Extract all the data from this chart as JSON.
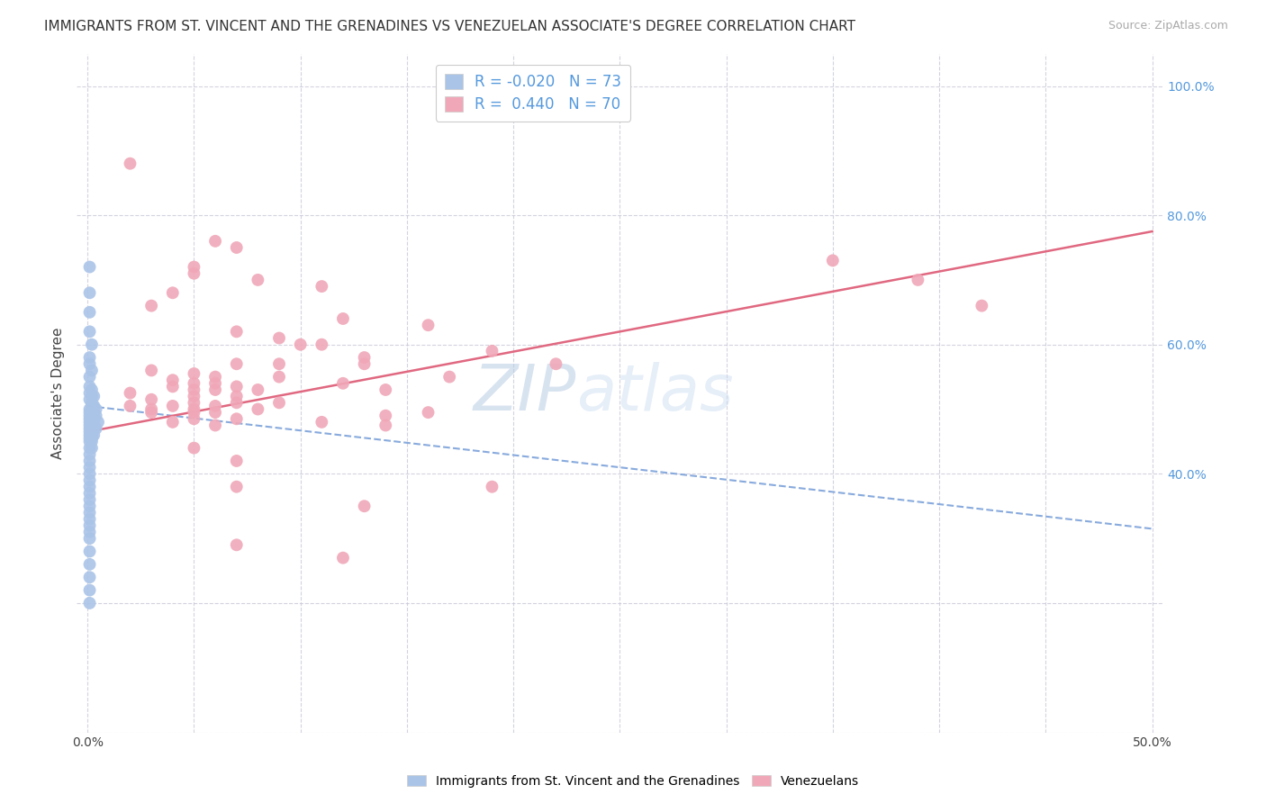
{
  "title": "IMMIGRANTS FROM ST. VINCENT AND THE GRENADINES VS VENEZUELAN ASSOCIATE'S DEGREE CORRELATION CHART",
  "source": "Source: ZipAtlas.com",
  "ylabel": "Associate's Degree",
  "legend_blue_R": "R = -0.020",
  "legend_blue_N": "N = 73",
  "legend_pink_R": "R =  0.440",
  "legend_pink_N": "N = 70",
  "legend_blue_label": "Immigrants from St. Vincent and the Grenadines",
  "legend_pink_label": "Venezuelans",
  "blue_scatter": [
    [
      0.001,
      0.72
    ],
    [
      0.001,
      0.68
    ],
    [
      0.001,
      0.65
    ],
    [
      0.001,
      0.62
    ],
    [
      0.002,
      0.6
    ],
    [
      0.001,
      0.58
    ],
    [
      0.001,
      0.57
    ],
    [
      0.002,
      0.56
    ],
    [
      0.001,
      0.55
    ],
    [
      0.001,
      0.535
    ],
    [
      0.002,
      0.53
    ],
    [
      0.001,
      0.525
    ],
    [
      0.002,
      0.52
    ],
    [
      0.003,
      0.52
    ],
    [
      0.001,
      0.515
    ],
    [
      0.002,
      0.51
    ],
    [
      0.002,
      0.505
    ],
    [
      0.003,
      0.505
    ],
    [
      0.001,
      0.5
    ],
    [
      0.002,
      0.5
    ],
    [
      0.003,
      0.5
    ],
    [
      0.004,
      0.5
    ],
    [
      0.001,
      0.495
    ],
    [
      0.002,
      0.495
    ],
    [
      0.003,
      0.495
    ],
    [
      0.001,
      0.49
    ],
    [
      0.002,
      0.49
    ],
    [
      0.003,
      0.49
    ],
    [
      0.004,
      0.49
    ],
    [
      0.001,
      0.485
    ],
    [
      0.002,
      0.485
    ],
    [
      0.003,
      0.485
    ],
    [
      0.001,
      0.48
    ],
    [
      0.002,
      0.48
    ],
    [
      0.003,
      0.48
    ],
    [
      0.005,
      0.48
    ],
    [
      0.001,
      0.475
    ],
    [
      0.002,
      0.475
    ],
    [
      0.003,
      0.475
    ],
    [
      0.001,
      0.47
    ],
    [
      0.002,
      0.47
    ],
    [
      0.003,
      0.47
    ],
    [
      0.004,
      0.47
    ],
    [
      0.001,
      0.465
    ],
    [
      0.002,
      0.465
    ],
    [
      0.001,
      0.46
    ],
    [
      0.002,
      0.46
    ],
    [
      0.003,
      0.46
    ],
    [
      0.001,
      0.455
    ],
    [
      0.002,
      0.455
    ],
    [
      0.001,
      0.45
    ],
    [
      0.002,
      0.45
    ],
    [
      0.001,
      0.44
    ],
    [
      0.002,
      0.44
    ],
    [
      0.001,
      0.43
    ],
    [
      0.001,
      0.42
    ],
    [
      0.001,
      0.41
    ],
    [
      0.001,
      0.4
    ],
    [
      0.001,
      0.39
    ],
    [
      0.001,
      0.38
    ],
    [
      0.001,
      0.37
    ],
    [
      0.001,
      0.36
    ],
    [
      0.001,
      0.35
    ],
    [
      0.001,
      0.34
    ],
    [
      0.001,
      0.33
    ],
    [
      0.001,
      0.32
    ],
    [
      0.001,
      0.31
    ],
    [
      0.001,
      0.3
    ],
    [
      0.001,
      0.28
    ],
    [
      0.001,
      0.26
    ],
    [
      0.001,
      0.24
    ],
    [
      0.001,
      0.22
    ],
    [
      0.001,
      0.2
    ]
  ],
  "pink_scatter": [
    [
      0.02,
      0.88
    ],
    [
      0.06,
      0.76
    ],
    [
      0.07,
      0.75
    ],
    [
      0.05,
      0.72
    ],
    [
      0.05,
      0.71
    ],
    [
      0.08,
      0.7
    ],
    [
      0.11,
      0.69
    ],
    [
      0.04,
      0.68
    ],
    [
      0.03,
      0.66
    ],
    [
      0.12,
      0.64
    ],
    [
      0.16,
      0.63
    ],
    [
      0.07,
      0.62
    ],
    [
      0.09,
      0.61
    ],
    [
      0.1,
      0.6
    ],
    [
      0.11,
      0.6
    ],
    [
      0.19,
      0.59
    ],
    [
      0.13,
      0.58
    ],
    [
      0.07,
      0.57
    ],
    [
      0.09,
      0.57
    ],
    [
      0.13,
      0.57
    ],
    [
      0.22,
      0.57
    ],
    [
      0.03,
      0.56
    ],
    [
      0.05,
      0.555
    ],
    [
      0.06,
      0.55
    ],
    [
      0.09,
      0.55
    ],
    [
      0.17,
      0.55
    ],
    [
      0.04,
      0.545
    ],
    [
      0.05,
      0.54
    ],
    [
      0.06,
      0.54
    ],
    [
      0.12,
      0.54
    ],
    [
      0.04,
      0.535
    ],
    [
      0.07,
      0.535
    ],
    [
      0.05,
      0.53
    ],
    [
      0.06,
      0.53
    ],
    [
      0.08,
      0.53
    ],
    [
      0.14,
      0.53
    ],
    [
      0.02,
      0.525
    ],
    [
      0.05,
      0.52
    ],
    [
      0.07,
      0.52
    ],
    [
      0.03,
      0.515
    ],
    [
      0.05,
      0.51
    ],
    [
      0.07,
      0.51
    ],
    [
      0.09,
      0.51
    ],
    [
      0.02,
      0.505
    ],
    [
      0.04,
      0.505
    ],
    [
      0.06,
      0.505
    ],
    [
      0.03,
      0.5
    ],
    [
      0.05,
      0.5
    ],
    [
      0.08,
      0.5
    ],
    [
      0.03,
      0.495
    ],
    [
      0.05,
      0.495
    ],
    [
      0.06,
      0.495
    ],
    [
      0.16,
      0.495
    ],
    [
      0.14,
      0.49
    ],
    [
      0.05,
      0.485
    ],
    [
      0.07,
      0.485
    ],
    [
      0.04,
      0.48
    ],
    [
      0.11,
      0.48
    ],
    [
      0.06,
      0.475
    ],
    [
      0.14,
      0.475
    ],
    [
      0.05,
      0.44
    ],
    [
      0.07,
      0.42
    ],
    [
      0.07,
      0.38
    ],
    [
      0.19,
      0.38
    ],
    [
      0.13,
      0.35
    ],
    [
      0.07,
      0.29
    ],
    [
      0.12,
      0.27
    ],
    [
      0.35,
      0.73
    ],
    [
      0.39,
      0.7
    ],
    [
      0.42,
      0.66
    ]
  ],
  "blue_line_x": [
    0.0,
    0.5
  ],
  "blue_line_y": [
    0.505,
    0.315
  ],
  "pink_line_x": [
    0.0,
    0.5
  ],
  "pink_line_y": [
    0.465,
    0.775
  ],
  "xlim": [
    -0.005,
    0.505
  ],
  "ylim": [
    0.0,
    1.05
  ],
  "x_ticks": [
    0.0,
    0.05,
    0.1,
    0.15,
    0.2,
    0.25,
    0.3,
    0.35,
    0.4,
    0.45,
    0.5
  ],
  "y_ticks_right": [
    0.4,
    0.6,
    0.8,
    1.0
  ],
  "y_tick_labels_right": [
    "40.0%",
    "60.0%",
    "80.0%",
    "100.0%"
  ],
  "blue_color": "#aac4e8",
  "pink_color": "#f0a8b8",
  "blue_line_color": "#88aadd",
  "pink_line_color": "#e06880",
  "watermark_zip": "ZIP",
  "watermark_atlas": "atlas",
  "grid_color": "#c8c8d8",
  "background_color": "#ffffff",
  "title_fontsize": 11,
  "source_fontsize": 9,
  "axis_label_fontsize": 10,
  "right_tick_color": "#5599dd"
}
